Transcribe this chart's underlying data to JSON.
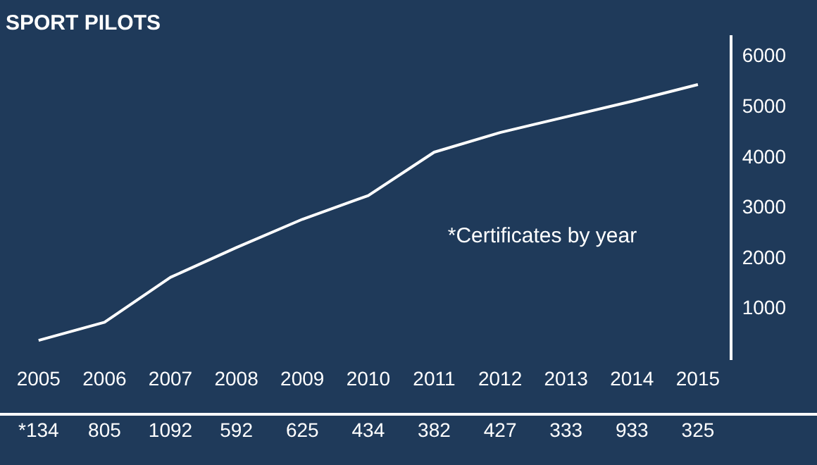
{
  "chart_data": {
    "type": "line",
    "title": "SPORT PILOTS",
    "categories": [
      "2005",
      "2006",
      "2007",
      "2008",
      "2009",
      "2010",
      "2011",
      "2012",
      "2013",
      "2014",
      "2015"
    ],
    "series": [
      {
        "color": "#ffffff",
        "values": [
          380,
          740,
          1630,
          2220,
          2780,
          3250,
          4110,
          4500,
          4810,
          5120,
          5450
        ]
      }
    ],
    "ylim": [
      0,
      6400
    ],
    "yticks": [
      1000,
      2000,
      3000,
      4000,
      5000,
      6000
    ],
    "grid": false,
    "legend": false,
    "marker": "none",
    "line_style": "solid",
    "annotations": [
      "*Certificates by year",
      "*134",
      "805",
      "1092",
      "592",
      "625",
      "434",
      "382",
      "427",
      "333",
      "933",
      "325"
    ]
  }
}
